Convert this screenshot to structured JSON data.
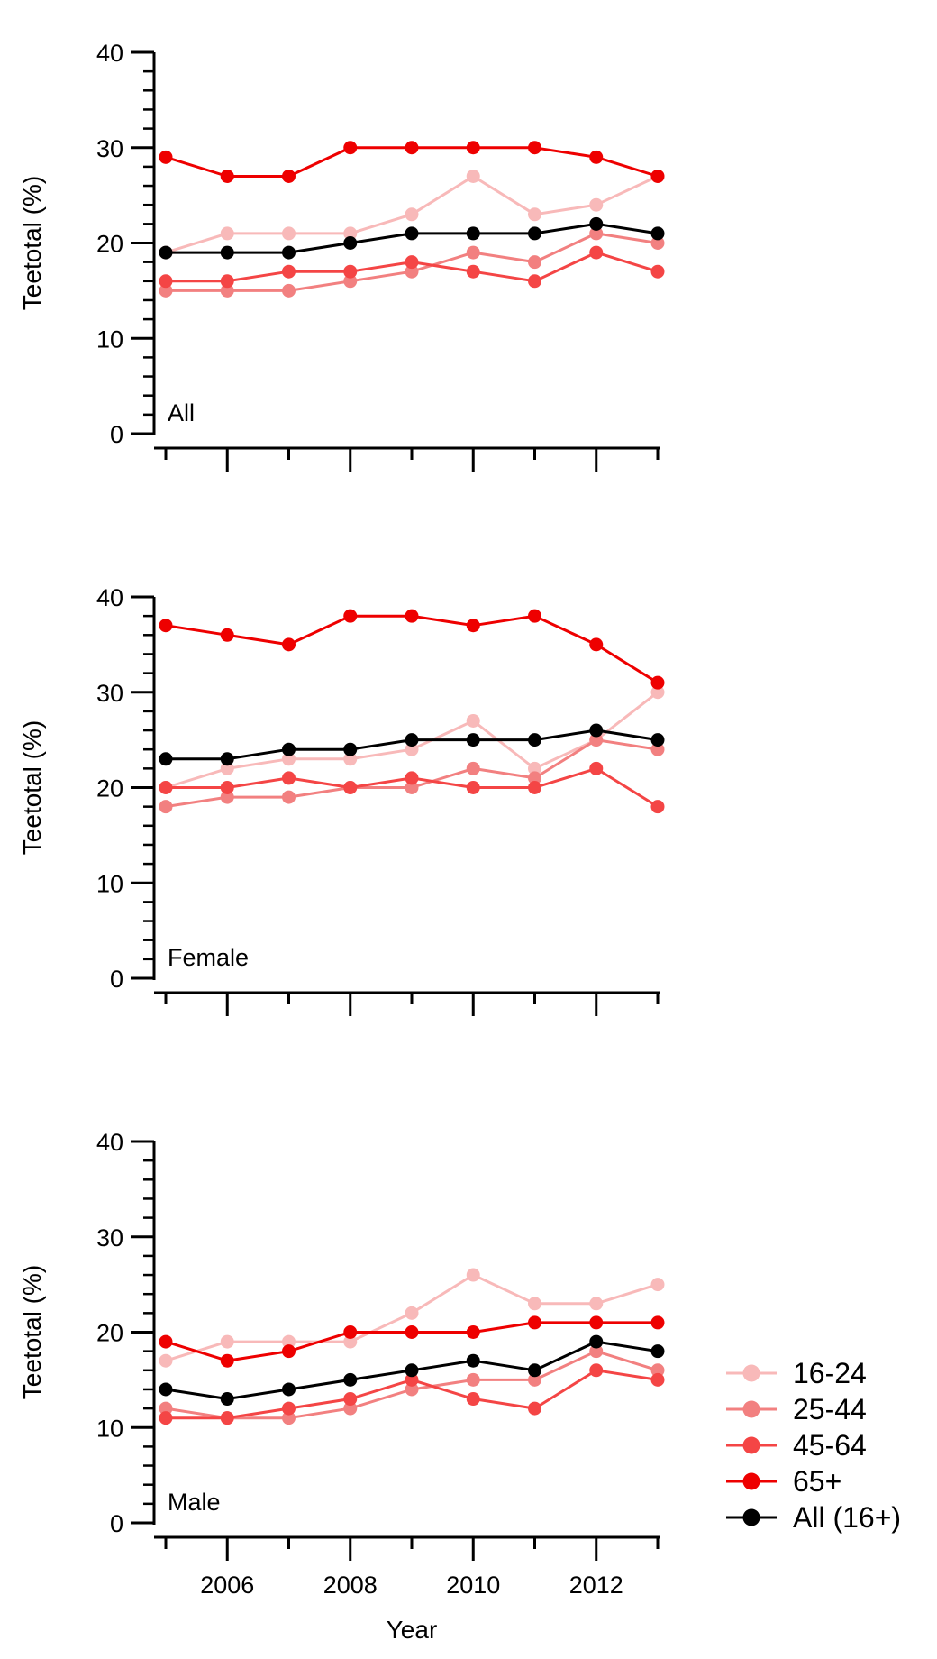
{
  "chart_data": [
    {
      "type": "line",
      "panel_label": "All",
      "xlabel": "",
      "ylabel": "Teetotal (%)",
      "xlim": [
        2004.8,
        2013
      ],
      "ylim": [
        0,
        40
      ],
      "y_ticks": [
        0,
        10,
        20,
        30,
        40
      ],
      "x_ticks": [
        2005,
        2006,
        2007,
        2008,
        2009,
        2010,
        2011,
        2012,
        2013
      ],
      "x_tick_labels": [],
      "grid": false,
      "x": [
        2005,
        2006,
        2007,
        2008,
        2009,
        2010,
        2011,
        2012,
        2013
      ],
      "series": [
        {
          "name": "16-24",
          "color": "#f8b9b9",
          "values": [
            19,
            21,
            21,
            21,
            23,
            27,
            23,
            24,
            27
          ]
        },
        {
          "name": "25-44",
          "color": "#f28080",
          "values": [
            15,
            15,
            15,
            16,
            17,
            19,
            18,
            21,
            20
          ]
        },
        {
          "name": "45-64",
          "color": "#f44545",
          "values": [
            16,
            16,
            17,
            17,
            18,
            17,
            16,
            19,
            17
          ]
        },
        {
          "name": "65+",
          "color": "#ee0000",
          "values": [
            29,
            27,
            27,
            30,
            30,
            30,
            30,
            29,
            27
          ]
        },
        {
          "name": "All (16+)",
          "color": "#000000",
          "values": [
            19,
            19,
            19,
            20,
            21,
            21,
            21,
            22,
            21
          ]
        }
      ]
    },
    {
      "type": "line",
      "panel_label": "Female",
      "xlabel": "",
      "ylabel": "Teetotal (%)",
      "xlim": [
        2004.8,
        2013
      ],
      "ylim": [
        0,
        40
      ],
      "y_ticks": [
        0,
        10,
        20,
        30,
        40
      ],
      "x_ticks": [
        2005,
        2006,
        2007,
        2008,
        2009,
        2010,
        2011,
        2012,
        2013
      ],
      "x_tick_labels": [],
      "grid": false,
      "x": [
        2005,
        2006,
        2007,
        2008,
        2009,
        2010,
        2011,
        2012,
        2013
      ],
      "series": [
        {
          "name": "16-24",
          "color": "#f8b9b9",
          "values": [
            20,
            22,
            23,
            23,
            24,
            27,
            22,
            25,
            30
          ]
        },
        {
          "name": "25-44",
          "color": "#f28080",
          "values": [
            18,
            19,
            19,
            20,
            20,
            22,
            21,
            25,
            24
          ]
        },
        {
          "name": "45-64",
          "color": "#f44545",
          "values": [
            20,
            20,
            21,
            20,
            21,
            20,
            20,
            22,
            18
          ]
        },
        {
          "name": "65+",
          "color": "#ee0000",
          "values": [
            37,
            36,
            35,
            38,
            38,
            37,
            38,
            35,
            31
          ]
        },
        {
          "name": "All (16+)",
          "color": "#000000",
          "values": [
            23,
            23,
            24,
            24,
            25,
            25,
            25,
            26,
            25
          ]
        }
      ]
    },
    {
      "type": "line",
      "panel_label": "Male",
      "xlabel": "Year",
      "ylabel": "Teetotal (%)",
      "xlim": [
        2004.8,
        2013
      ],
      "ylim": [
        0,
        40
      ],
      "y_ticks": [
        0,
        10,
        20,
        30,
        40
      ],
      "x_ticks": [
        2005,
        2006,
        2007,
        2008,
        2009,
        2010,
        2011,
        2012,
        2013
      ],
      "x_tick_labels": [
        "2006",
        "2008",
        "2010",
        "2012"
      ],
      "grid": false,
      "x": [
        2005,
        2006,
        2007,
        2008,
        2009,
        2010,
        2011,
        2012,
        2013
      ],
      "series": [
        {
          "name": "16-24",
          "color": "#f8b9b9",
          "values": [
            17,
            19,
            19,
            19,
            22,
            26,
            23,
            23,
            25
          ]
        },
        {
          "name": "25-44",
          "color": "#f28080",
          "values": [
            12,
            11,
            11,
            12,
            14,
            15,
            15,
            18,
            16
          ]
        },
        {
          "name": "45-64",
          "color": "#f44545",
          "values": [
            11,
            11,
            12,
            13,
            15,
            13,
            12,
            16,
            15
          ]
        },
        {
          "name": "65+",
          "color": "#ee0000",
          "values": [
            19,
            17,
            18,
            20,
            20,
            20,
            21,
            21,
            21
          ]
        },
        {
          "name": "All (16+)",
          "color": "#000000",
          "values": [
            14,
            13,
            14,
            15,
            16,
            17,
            16,
            19,
            18
          ]
        }
      ]
    }
  ],
  "legend": {
    "placement": "right of bottom panel",
    "items": [
      {
        "label": "16-24",
        "color": "#f8b9b9"
      },
      {
        "label": "25-44",
        "color": "#f28080"
      },
      {
        "label": "45-64",
        "color": "#f44545"
      },
      {
        "label": "65+",
        "color": "#ee0000"
      },
      {
        "label": "All (16+)",
        "color": "#000000"
      }
    ]
  }
}
